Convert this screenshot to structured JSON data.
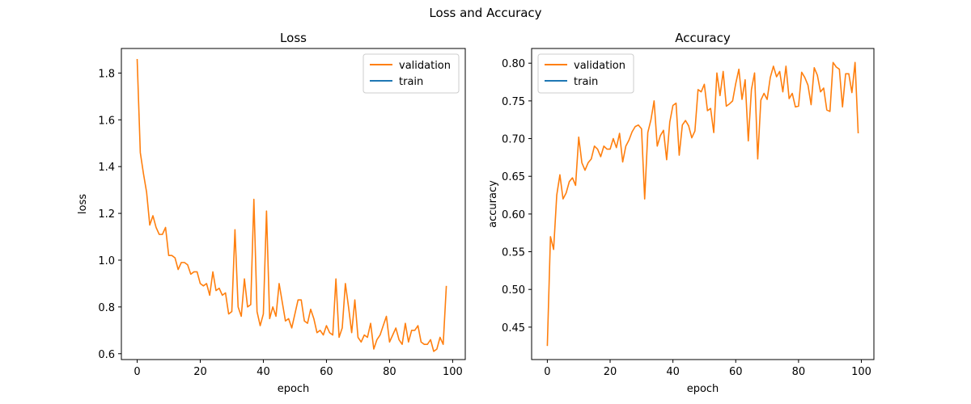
{
  "figure": {
    "title": "Loss and Accuracy"
  },
  "chart_data": [
    {
      "type": "line",
      "title": "Loss",
      "xlabel": "epoch",
      "ylabel": "loss",
      "xlim": [
        -5,
        104
      ],
      "ylim": [
        0.575,
        1.905
      ],
      "xticks": [
        0,
        20,
        40,
        60,
        80,
        100
      ],
      "yticks": [
        0.6,
        0.8,
        1.0,
        1.2,
        1.4,
        1.6,
        1.8
      ],
      "xtick_labels": [
        "0",
        "20",
        "40",
        "60",
        "80",
        "100"
      ],
      "ytick_labels": [
        "0.6",
        "0.8",
        "1.0",
        "1.2",
        "1.4",
        "1.6",
        "1.8"
      ],
      "legend_position": "top-right",
      "legend": [
        "validation",
        "train"
      ],
      "series": [
        {
          "name": "validation",
          "color": "#ff7f0e",
          "x_start": 0,
          "values": [
            1.86,
            1.46,
            1.37,
            1.29,
            1.15,
            1.19,
            1.14,
            1.11,
            1.11,
            1.14,
            1.02,
            1.02,
            1.01,
            0.96,
            0.99,
            0.99,
            0.98,
            0.94,
            0.95,
            0.95,
            0.9,
            0.89,
            0.9,
            0.85,
            0.95,
            0.87,
            0.88,
            0.85,
            0.86,
            0.77,
            0.78,
            1.13,
            0.8,
            0.76,
            0.92,
            0.8,
            0.81,
            1.26,
            0.78,
            0.72,
            0.77,
            1.21,
            0.75,
            0.8,
            0.76,
            0.9,
            0.82,
            0.74,
            0.75,
            0.71,
            0.77,
            0.83,
            0.83,
            0.74,
            0.73,
            0.79,
            0.75,
            0.69,
            0.7,
            0.68,
            0.72,
            0.69,
            0.68,
            0.92,
            0.67,
            0.71,
            0.9,
            0.8,
            0.69,
            0.83,
            0.67,
            0.65,
            0.68,
            0.67,
            0.73,
            0.62,
            0.66,
            0.68,
            0.72,
            0.76,
            0.65,
            0.68,
            0.71,
            0.66,
            0.64,
            0.73,
            0.65,
            0.7,
            0.7,
            0.72,
            0.65,
            0.64,
            0.64,
            0.66,
            0.61,
            0.62,
            0.67,
            0.64,
            0.89
          ]
        },
        {
          "name": "train",
          "color": "#1f77b4",
          "x_start": 0,
          "values": []
        }
      ]
    },
    {
      "type": "line",
      "title": "Accuracy",
      "xlabel": "epoch",
      "ylabel": "accuracy",
      "xlim": [
        -5,
        104
      ],
      "ylim": [
        0.407,
        0.8195
      ],
      "xticks": [
        0,
        20,
        40,
        60,
        80,
        100
      ],
      "yticks": [
        0.45,
        0.5,
        0.55,
        0.6,
        0.65,
        0.7,
        0.75,
        0.8
      ],
      "xtick_labels": [
        "0",
        "20",
        "40",
        "60",
        "80",
        "100"
      ],
      "ytick_labels": [
        "0.45",
        "0.50",
        "0.55",
        "0.60",
        "0.65",
        "0.70",
        "0.75",
        "0.80"
      ],
      "legend_position": "top-left",
      "legend": [
        "validation",
        "train"
      ],
      "series": [
        {
          "name": "validation",
          "color": "#ff7f0e",
          "x_start": 0,
          "values": [
            0.425,
            0.57,
            0.553,
            0.625,
            0.652,
            0.62,
            0.628,
            0.643,
            0.648,
            0.638,
            0.702,
            0.668,
            0.658,
            0.668,
            0.673,
            0.69,
            0.686,
            0.676,
            0.69,
            0.686,
            0.686,
            0.7,
            0.688,
            0.707,
            0.669,
            0.69,
            0.698,
            0.709,
            0.716,
            0.718,
            0.713,
            0.62,
            0.708,
            0.725,
            0.75,
            0.69,
            0.704,
            0.711,
            0.672,
            0.722,
            0.744,
            0.747,
            0.678,
            0.718,
            0.724,
            0.717,
            0.701,
            0.71,
            0.765,
            0.762,
            0.772,
            0.737,
            0.74,
            0.708,
            0.787,
            0.757,
            0.789,
            0.743,
            0.746,
            0.75,
            0.773,
            0.792,
            0.752,
            0.778,
            0.697,
            0.765,
            0.787,
            0.673,
            0.751,
            0.76,
            0.752,
            0.781,
            0.796,
            0.782,
            0.789,
            0.762,
            0.796,
            0.753,
            0.76,
            0.742,
            0.743,
            0.788,
            0.781,
            0.771,
            0.745,
            0.794,
            0.784,
            0.762,
            0.767,
            0.738,
            0.736,
            0.801,
            0.795,
            0.792,
            0.742,
            0.786,
            0.786,
            0.761,
            0.801,
            0.707
          ]
        },
        {
          "name": "train",
          "color": "#1f77b4",
          "x_start": 0,
          "values": []
        }
      ]
    }
  ]
}
